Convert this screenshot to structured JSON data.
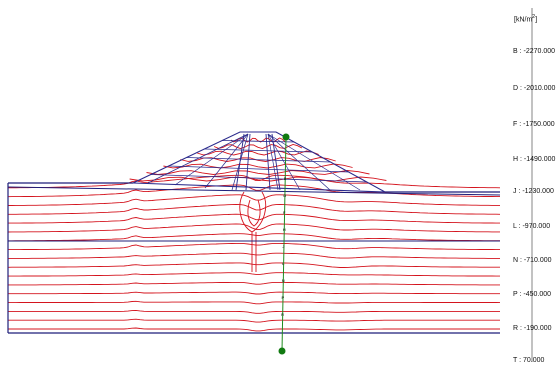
{
  "legend": {
    "unit": "[kN/m",
    "unit_sup": "2",
    "unit_close": "]",
    "items": [
      {
        "letter": "B",
        "value": "-2270.000"
      },
      {
        "letter": "D",
        "value": "-2010.000"
      },
      {
        "letter": "F",
        "value": "-1750.000"
      },
      {
        "letter": "H",
        "value": "-1490.000"
      },
      {
        "letter": "J",
        "value": "-1230.000"
      },
      {
        "letter": "L",
        "value": "-970.000"
      },
      {
        "letter": "N",
        "value": "-710.000"
      },
      {
        "letter": "P",
        "value": "-450.000"
      },
      {
        "letter": "R",
        "value": "-190.000"
      },
      {
        "letter": "T",
        "value": "70.000"
      }
    ]
  },
  "section_letters": [
    "B",
    "D",
    "F",
    "H",
    "J",
    "L",
    "N",
    "P",
    "R"
  ],
  "colors": {
    "contour": "#d4141e",
    "mesh": "#2a2a8c",
    "boundary": "#1f1f7a",
    "section_line": "#1f8a1f",
    "section_marker": "#117a11",
    "legend_axis": "#333333"
  }
}
